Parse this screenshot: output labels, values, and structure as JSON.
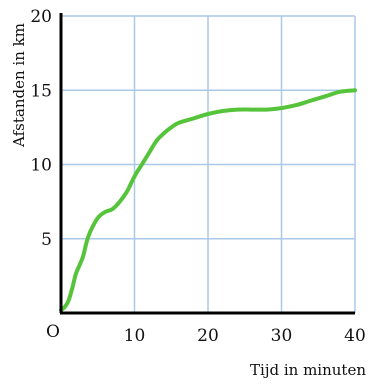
{
  "chart_data": {
    "type": "line",
    "xlabel": "Tijd in minuten",
    "ylabel": "Afstanden in km",
    "origin_label": "O",
    "xlim": [
      0,
      40
    ],
    "ylim": [
      0,
      20
    ],
    "x_ticks": [
      10,
      20,
      30,
      40
    ],
    "y_ticks": [
      5,
      10,
      15,
      20
    ],
    "grid": true,
    "colors": {
      "line": "#55c43a",
      "grid": "#aac8e8",
      "axis": "#000000"
    },
    "series": [
      {
        "x": [
          0,
          0.5,
          1,
          1.5,
          2,
          2.5,
          3,
          3.5,
          4,
          5,
          6,
          7,
          8,
          9,
          10,
          11,
          12,
          13,
          14,
          15,
          16,
          18,
          20,
          22,
          24,
          26,
          28,
          30,
          32,
          34,
          36,
          38,
          40
        ],
        "y": [
          0.2,
          0.4,
          0.8,
          1.6,
          2.6,
          3.2,
          3.8,
          4.8,
          5.5,
          6.4,
          6.8,
          7.0,
          7.5,
          8.2,
          9.2,
          10.0,
          10.8,
          11.6,
          12.1,
          12.5,
          12.8,
          13.1,
          13.4,
          13.6,
          13.7,
          13.7,
          13.7,
          13.8,
          14.0,
          14.3,
          14.6,
          14.9,
          15.0
        ]
      }
    ]
  }
}
